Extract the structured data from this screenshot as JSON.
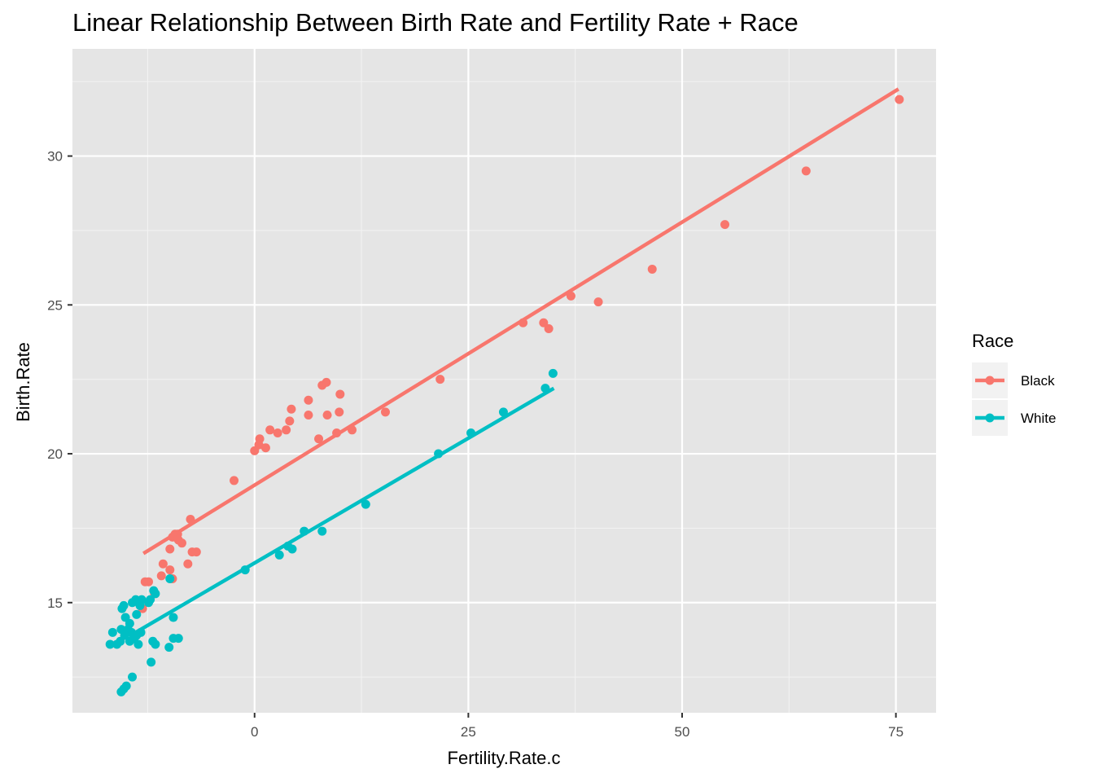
{
  "chart_data": {
    "type": "scatter",
    "title": "Linear Relationship Between Birth Rate and Fertility Rate + Race",
    "xlabel": "Fertility.Rate.c",
    "ylabel": "Birth.Rate",
    "xlim": [
      -21.3,
      79.7
    ],
    "ylim": [
      11.3,
      33.6
    ],
    "xticks": [
      0,
      25,
      50,
      75
    ],
    "xtick_labels": [
      "0",
      "25",
      "50",
      "75"
    ],
    "yticks": [
      15,
      20,
      25,
      30
    ],
    "ytick_labels": [
      "15",
      "20",
      "25",
      "30"
    ],
    "grid": true,
    "panel_background": "#e5e5e5",
    "legend": {
      "title": "Race",
      "placement": "right"
    },
    "series": [
      {
        "name": "Black",
        "color": "#f8766d",
        "fit_line": {
          "x": [
            -13.0,
            75.3
          ],
          "y": [
            16.65,
            32.25
          ]
        },
        "points": [
          [
            75.4,
            31.9
          ],
          [
            64.5,
            29.5
          ],
          [
            55.0,
            27.7
          ],
          [
            46.5,
            26.2
          ],
          [
            40.2,
            25.1
          ],
          [
            37.0,
            25.3
          ],
          [
            34.4,
            24.2
          ],
          [
            33.8,
            24.4
          ],
          [
            31.4,
            24.4
          ],
          [
            21.7,
            22.5
          ],
          [
            15.3,
            21.4
          ],
          [
            11.4,
            20.8
          ],
          [
            10.0,
            22.0
          ],
          [
            9.9,
            21.4
          ],
          [
            9.6,
            20.7
          ],
          [
            8.5,
            21.3
          ],
          [
            8.4,
            22.4
          ],
          [
            7.9,
            22.3
          ],
          [
            7.5,
            20.5
          ],
          [
            6.3,
            21.8
          ],
          [
            6.3,
            21.3
          ],
          [
            4.3,
            21.5
          ],
          [
            4.1,
            21.1
          ],
          [
            3.7,
            20.8
          ],
          [
            2.7,
            20.7
          ],
          [
            1.8,
            20.8
          ],
          [
            1.3,
            20.2
          ],
          [
            0.6,
            20.5
          ],
          [
            0.5,
            20.3
          ],
          [
            0.0,
            20.1
          ],
          [
            -2.4,
            19.1
          ],
          [
            -7.3,
            16.7
          ],
          [
            -6.8,
            16.7
          ],
          [
            -7.5,
            17.8
          ],
          [
            -7.8,
            16.3
          ],
          [
            -8.5,
            17.0
          ],
          [
            -8.9,
            17.1
          ],
          [
            -9.0,
            17.3
          ],
          [
            -9.3,
            17.3
          ],
          [
            -9.6,
            17.2
          ],
          [
            -9.9,
            16.1
          ],
          [
            -9.9,
            16.8
          ],
          [
            -9.6,
            15.8
          ],
          [
            -10.9,
            15.9
          ],
          [
            -10.7,
            16.3
          ],
          [
            -12.4,
            15.7
          ],
          [
            -12.8,
            15.7
          ],
          [
            -13.1,
            14.8
          ],
          [
            -11.7,
            15.3
          ]
        ]
      },
      {
        "name": "White",
        "color": "#00bfc4",
        "fit_line": {
          "x": [
            -13.9,
            35.0
          ],
          "y": [
            14.0,
            22.2
          ]
        },
        "points": [
          [
            34.9,
            22.7
          ],
          [
            34.0,
            22.2
          ],
          [
            29.1,
            21.4
          ],
          [
            25.3,
            20.7
          ],
          [
            21.5,
            20.0
          ],
          [
            13.0,
            18.3
          ],
          [
            7.9,
            17.4
          ],
          [
            5.8,
            17.4
          ],
          [
            4.4,
            16.8
          ],
          [
            3.9,
            16.9
          ],
          [
            2.9,
            16.6
          ],
          [
            -1.1,
            16.1
          ],
          [
            -9.5,
            14.5
          ],
          [
            -9.5,
            13.8
          ],
          [
            -9.9,
            15.8
          ],
          [
            -8.9,
            13.8
          ],
          [
            -10.0,
            13.5
          ],
          [
            -11.6,
            13.6
          ],
          [
            -11.9,
            13.7
          ],
          [
            -12.1,
            13.0
          ],
          [
            -11.8,
            15.4
          ],
          [
            -11.6,
            15.3
          ],
          [
            -12.2,
            15.1
          ],
          [
            -12.4,
            15.0
          ],
          [
            -13.2,
            15.1
          ],
          [
            -13.4,
            14.9
          ],
          [
            -13.9,
            15.1
          ],
          [
            -14.3,
            15.0
          ],
          [
            -15.3,
            14.9
          ],
          [
            -15.5,
            14.8
          ],
          [
            -15.1,
            14.5
          ],
          [
            -14.6,
            14.3
          ],
          [
            -13.8,
            14.6
          ],
          [
            -15.6,
            14.1
          ],
          [
            -14.8,
            14.1
          ],
          [
            -16.6,
            14.0
          ],
          [
            -14.4,
            14.0
          ],
          [
            -13.3,
            14.0
          ],
          [
            -13.8,
            13.9
          ],
          [
            -15.2,
            13.9
          ],
          [
            -14.2,
            13.8
          ],
          [
            -14.6,
            13.7
          ],
          [
            -13.6,
            13.6
          ],
          [
            -16.1,
            13.6
          ],
          [
            -15.7,
            13.7
          ],
          [
            -16.9,
            13.6
          ],
          [
            -14.1,
            13.8
          ],
          [
            -14.3,
            12.5
          ],
          [
            -15.0,
            12.2
          ],
          [
            -15.3,
            12.1
          ],
          [
            -15.6,
            12.0
          ]
        ]
      }
    ]
  }
}
